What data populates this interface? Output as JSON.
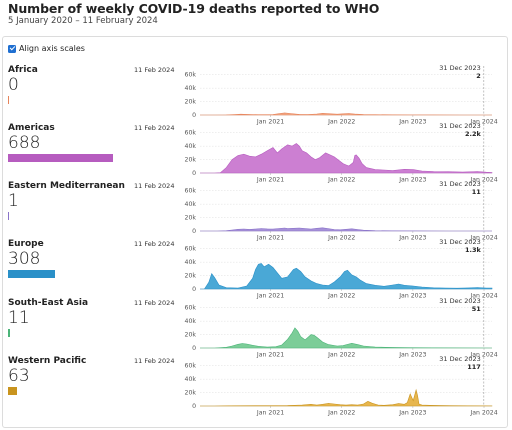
{
  "title": "Number of weekly COVID-19 deaths reported to WHO",
  "subtitle": "5 January 2020 – 11 February 2024",
  "align_label": "Align axis scales",
  "chart_data": {
    "type": "area",
    "x_ticks": [
      "Jan 2021",
      "Jan 2022",
      "Jan 2023",
      "Jan 2024"
    ],
    "x_range": [
      "2020-01-05",
      "2024-02-11"
    ],
    "y_ticks": [
      "0",
      "20k",
      "40k",
      "60k"
    ],
    "ylim": [
      0,
      70000
    ],
    "annotation_date": "31 Dec 2023",
    "series": [
      {
        "name": "Africa",
        "value": "0",
        "date": "11 Feb 2024",
        "annotation_value": "2",
        "bar_fraction": 0,
        "color": "#e6845b",
        "fill": "#f2a987",
        "points": [
          [
            0,
            0
          ],
          [
            0.05,
            0
          ],
          [
            0.09,
            200
          ],
          [
            0.12,
            800
          ],
          [
            0.14,
            1200
          ],
          [
            0.16,
            900
          ],
          [
            0.2,
            500
          ],
          [
            0.25,
            700
          ],
          [
            0.27,
            2000
          ],
          [
            0.29,
            3100
          ],
          [
            0.31,
            2200
          ],
          [
            0.34,
            900
          ],
          [
            0.37,
            700
          ],
          [
            0.4,
            1500
          ],
          [
            0.42,
            2600
          ],
          [
            0.44,
            2000
          ],
          [
            0.47,
            1200
          ],
          [
            0.49,
            1800
          ],
          [
            0.51,
            2100
          ],
          [
            0.53,
            1400
          ],
          [
            0.56,
            600
          ],
          [
            0.6,
            400
          ],
          [
            0.66,
            300
          ],
          [
            0.72,
            200
          ],
          [
            0.8,
            100
          ],
          [
            0.9,
            30
          ],
          [
            1,
            0
          ]
        ]
      },
      {
        "name": "Americas",
        "value": "688",
        "date": "11 Feb 2024",
        "annotation_value": "2.2k",
        "bar_fraction": 1,
        "color": "#b65cbf",
        "fill": "#cc7fd2",
        "points": [
          [
            0,
            0
          ],
          [
            0.05,
            0
          ],
          [
            0.07,
            500
          ],
          [
            0.09,
            8000
          ],
          [
            0.11,
            20000
          ],
          [
            0.13,
            26000
          ],
          [
            0.15,
            28000
          ],
          [
            0.17,
            25000
          ],
          [
            0.19,
            24000
          ],
          [
            0.21,
            28000
          ],
          [
            0.23,
            33000
          ],
          [
            0.25,
            38000
          ],
          [
            0.265,
            30000
          ],
          [
            0.28,
            36000
          ],
          [
            0.3,
            42000
          ],
          [
            0.315,
            40000
          ],
          [
            0.33,
            44000
          ],
          [
            0.34,
            40000
          ],
          [
            0.35,
            33000
          ],
          [
            0.365,
            30000
          ],
          [
            0.38,
            24000
          ],
          [
            0.395,
            20000
          ],
          [
            0.41,
            23000
          ],
          [
            0.43,
            30000
          ],
          [
            0.45,
            26000
          ],
          [
            0.46,
            24000
          ],
          [
            0.475,
            19000
          ],
          [
            0.49,
            14000
          ],
          [
            0.5,
            12000
          ],
          [
            0.51,
            10500
          ],
          [
            0.52,
            14000
          ],
          [
            0.525,
            16000
          ],
          [
            0.53,
            26000
          ],
          [
            0.535,
            27000
          ],
          [
            0.545,
            22000
          ],
          [
            0.555,
            14000
          ],
          [
            0.57,
            8000
          ],
          [
            0.6,
            5000
          ],
          [
            0.63,
            4500
          ],
          [
            0.66,
            3500
          ],
          [
            0.7,
            5500
          ],
          [
            0.73,
            5000
          ],
          [
            0.76,
            3000
          ],
          [
            0.8,
            2200
          ],
          [
            0.85,
            2000
          ],
          [
            0.9,
            1500
          ],
          [
            0.95,
            2200
          ],
          [
            0.98,
            1200
          ],
          [
            1,
            700
          ]
        ]
      },
      {
        "name": "Eastern Mediterranean",
        "value": "1",
        "date": "11 Feb 2024",
        "annotation_value": "11",
        "bar_fraction": 0.01,
        "color": "#8a73c9",
        "fill": "#a691d8",
        "points": [
          [
            0,
            0
          ],
          [
            0.06,
            0
          ],
          [
            0.09,
            500
          ],
          [
            0.11,
            1500
          ],
          [
            0.13,
            2500
          ],
          [
            0.15,
            3000
          ],
          [
            0.17,
            2400
          ],
          [
            0.19,
            3000
          ],
          [
            0.21,
            3700
          ],
          [
            0.23,
            3200
          ],
          [
            0.25,
            2800
          ],
          [
            0.27,
            3700
          ],
          [
            0.29,
            4500
          ],
          [
            0.3,
            3500
          ],
          [
            0.32,
            4000
          ],
          [
            0.34,
            4500
          ],
          [
            0.36,
            3600
          ],
          [
            0.38,
            2800
          ],
          [
            0.4,
            4000
          ],
          [
            0.42,
            4800
          ],
          [
            0.44,
            3400
          ],
          [
            0.46,
            2200
          ],
          [
            0.48,
            1800
          ],
          [
            0.5,
            2600
          ],
          [
            0.52,
            3300
          ],
          [
            0.54,
            2200
          ],
          [
            0.56,
            1200
          ],
          [
            0.6,
            500
          ],
          [
            0.66,
            300
          ],
          [
            0.75,
            150
          ],
          [
            0.85,
            50
          ],
          [
            1,
            0
          ]
        ]
      },
      {
        "name": "Europe",
        "value": "308",
        "date": "11 Feb 2024",
        "annotation_value": "1.3k",
        "bar_fraction": 0.45,
        "color": "#2a90c8",
        "fill": "#4aa8d6",
        "points": [
          [
            0,
            0
          ],
          [
            0.015,
            0
          ],
          [
            0.03,
            10000
          ],
          [
            0.04,
            23000
          ],
          [
            0.05,
            17000
          ],
          [
            0.065,
            6000
          ],
          [
            0.09,
            2000
          ],
          [
            0.13,
            1500
          ],
          [
            0.16,
            4500
          ],
          [
            0.18,
            16000
          ],
          [
            0.19,
            29000
          ],
          [
            0.2,
            37000
          ],
          [
            0.21,
            38000
          ],
          [
            0.22,
            33000
          ],
          [
            0.235,
            37000
          ],
          [
            0.25,
            32000
          ],
          [
            0.265,
            24000
          ],
          [
            0.28,
            16000
          ],
          [
            0.3,
            18000
          ],
          [
            0.32,
            29000
          ],
          [
            0.33,
            31000
          ],
          [
            0.345,
            26000
          ],
          [
            0.36,
            18000
          ],
          [
            0.38,
            12000
          ],
          [
            0.4,
            8000
          ],
          [
            0.42,
            6000
          ],
          [
            0.44,
            5000
          ],
          [
            0.46,
            10500
          ],
          [
            0.48,
            18000
          ],
          [
            0.495,
            26000
          ],
          [
            0.505,
            28000
          ],
          [
            0.52,
            21000
          ],
          [
            0.535,
            18000
          ],
          [
            0.55,
            13000
          ],
          [
            0.57,
            8000
          ],
          [
            0.6,
            5500
          ],
          [
            0.63,
            4000
          ],
          [
            0.66,
            6000
          ],
          [
            0.68,
            7500
          ],
          [
            0.7,
            5500
          ],
          [
            0.73,
            4500
          ],
          [
            0.76,
            3000
          ],
          [
            0.8,
            1800
          ],
          [
            0.84,
            1500
          ],
          [
            0.88,
            1200
          ],
          [
            0.92,
            1700
          ],
          [
            0.95,
            2200
          ],
          [
            0.98,
            1500
          ],
          [
            1,
            1300
          ]
        ]
      },
      {
        "name": "South-East Asia",
        "value": "11",
        "date": "11 Feb 2024",
        "annotation_value": "51",
        "bar_fraction": 0.02,
        "color": "#4bb478",
        "fill": "#7ccd98",
        "points": [
          [
            0,
            0
          ],
          [
            0.05,
            0
          ],
          [
            0.09,
            1000
          ],
          [
            0.11,
            3000
          ],
          [
            0.13,
            5500
          ],
          [
            0.145,
            6500
          ],
          [
            0.16,
            6000
          ],
          [
            0.18,
            4000
          ],
          [
            0.2,
            2500
          ],
          [
            0.23,
            1500
          ],
          [
            0.26,
            2000
          ],
          [
            0.28,
            4500
          ],
          [
            0.3,
            13000
          ],
          [
            0.315,
            22000
          ],
          [
            0.325,
            30000
          ],
          [
            0.335,
            25000
          ],
          [
            0.345,
            17000
          ],
          [
            0.36,
            12000
          ],
          [
            0.37,
            16000
          ],
          [
            0.38,
            20000
          ],
          [
            0.39,
            19000
          ],
          [
            0.4,
            16000
          ],
          [
            0.42,
            9000
          ],
          [
            0.44,
            5000
          ],
          [
            0.47,
            3000
          ],
          [
            0.49,
            3500
          ],
          [
            0.51,
            6000
          ],
          [
            0.52,
            7000
          ],
          [
            0.54,
            5000
          ],
          [
            0.56,
            3000
          ],
          [
            0.6,
            1500
          ],
          [
            0.65,
            900
          ],
          [
            0.72,
            500
          ],
          [
            0.8,
            300
          ],
          [
            0.9,
            100
          ],
          [
            1,
            50
          ]
        ]
      },
      {
        "name": "Western Pacific",
        "value": "63",
        "date": "11 Feb 2024",
        "annotation_value": "117",
        "bar_fraction": 0.09,
        "color": "#c9941e",
        "fill": "#e7b64e",
        "points": [
          [
            0,
            0
          ],
          [
            0.05,
            0
          ],
          [
            0.1,
            300
          ],
          [
            0.2,
            500
          ],
          [
            0.3,
            800
          ],
          [
            0.35,
            1500
          ],
          [
            0.38,
            2500
          ],
          [
            0.4,
            1500
          ],
          [
            0.42,
            2500
          ],
          [
            0.44,
            3800
          ],
          [
            0.46,
            3000
          ],
          [
            0.48,
            2000
          ],
          [
            0.5,
            1400
          ],
          [
            0.52,
            2000
          ],
          [
            0.54,
            1500
          ],
          [
            0.56,
            3000
          ],
          [
            0.575,
            7000
          ],
          [
            0.59,
            4000
          ],
          [
            0.61,
            1500
          ],
          [
            0.63,
            1000
          ],
          [
            0.66,
            2000
          ],
          [
            0.68,
            3500
          ],
          [
            0.7,
            2500
          ],
          [
            0.71,
            5000
          ],
          [
            0.72,
            18000
          ],
          [
            0.73,
            8000
          ],
          [
            0.74,
            24000
          ],
          [
            0.745,
            16000
          ],
          [
            0.75,
            3000
          ],
          [
            0.76,
            1500
          ],
          [
            0.8,
            900
          ],
          [
            0.86,
            500
          ],
          [
            0.92,
            300
          ],
          [
            1,
            117
          ]
        ]
      }
    ]
  }
}
